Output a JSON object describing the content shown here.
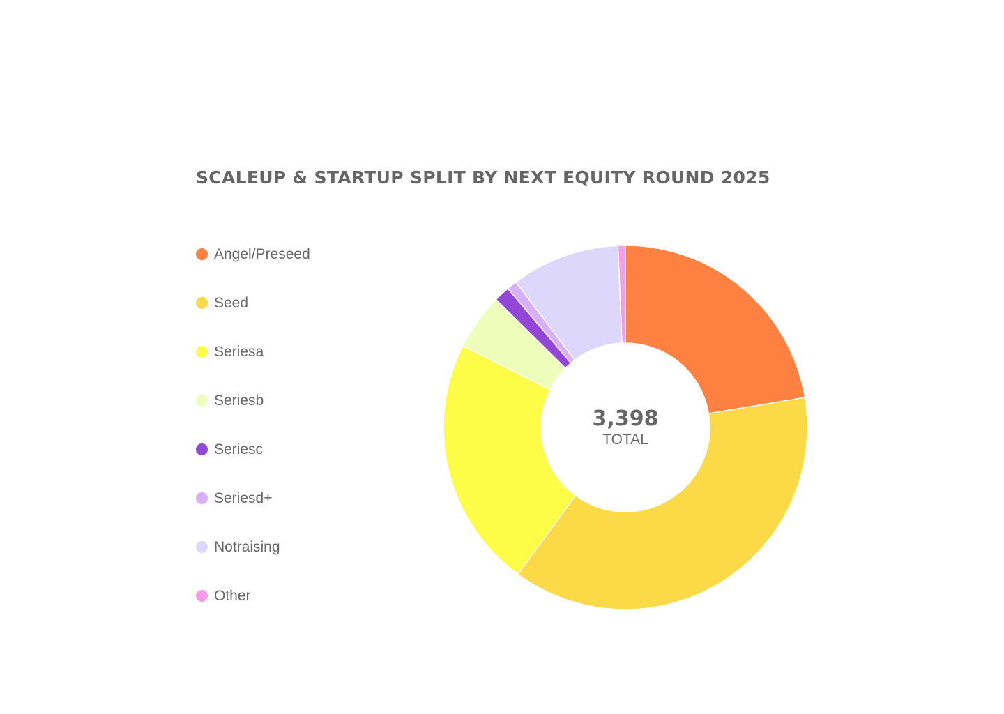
{
  "chart_data": {
    "type": "pie",
    "title": "SCALEUP & STARTUP SPLIT BY NEXT EQUITY ROUND 2025",
    "center_value": "3,398",
    "center_label": "TOTAL",
    "legend_placement": "left",
    "categories": [
      "Angel/Preseed",
      "Seed",
      "Seriesa",
      "Seriesb",
      "Seriesc",
      "Seriesd+",
      "Notraising",
      "Other"
    ],
    "values": [
      760,
      1281,
      759,
      170,
      48,
      31,
      327,
      22
    ],
    "colors": [
      "#FF8142",
      "#FCD947",
      "#FDFD47",
      "#EEFDB9",
      "#9446D9",
      "#D7B0F9",
      "#DDD7FC",
      "#FA9AE8"
    ]
  }
}
